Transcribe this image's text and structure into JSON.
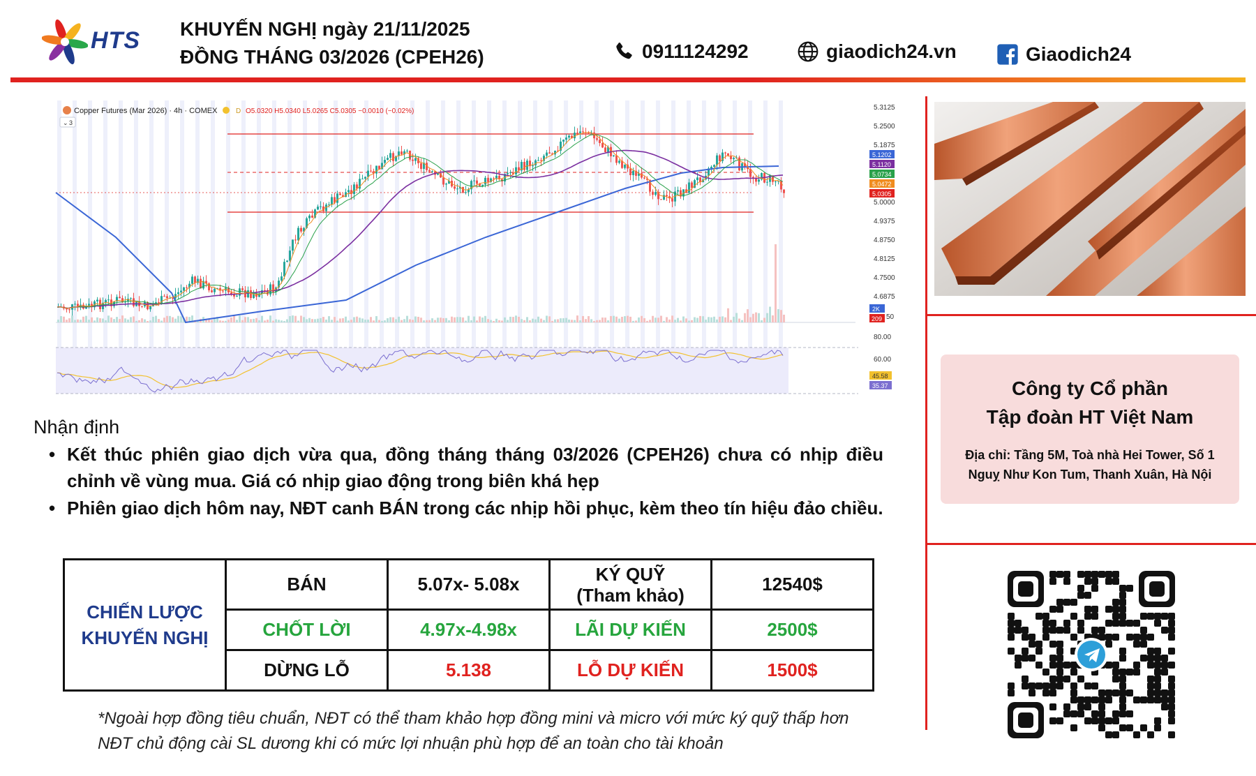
{
  "header": {
    "logo_text": "HTS",
    "title_line1": "KHUYẾN NGHỊ ngày 21/11/2025",
    "title_line2": "ĐỒNG THÁNG 03/2026 (CPEH26)",
    "phone": "0911124292",
    "website": "giaodich24.vn",
    "facebook": "Giaodich24",
    "icons": {
      "phone": "phone-icon",
      "web": "globe-icon",
      "facebook": "facebook-icon"
    },
    "accent_colors": {
      "rule_start": "#e0221f",
      "rule_end": "#f5b21f",
      "brand_blue": "#1f3b8c"
    }
  },
  "chart": {
    "header_text": "Copper Futures (Mar 2026) · 4h · COMEX",
    "ohlc_text": "O5.0320 H5.0340 L5.0265 C5.0305 −0.0010 (−0.02%)",
    "collapse_text": "3",
    "price_ticks": [
      "5.3125",
      "5.2500",
      "5.1875",
      "5.0000",
      "4.9375",
      "4.8750",
      "4.8125",
      "4.7500",
      "4.6875"
    ],
    "price_badges": [
      {
        "text": "5.1202",
        "color": "#3a66d6"
      },
      {
        "text": "5.1120",
        "color": "#7b2fa0"
      },
      {
        "text": "5.0734",
        "color": "#29a14a"
      },
      {
        "text": "5.0472",
        "color": "#f08c1f"
      },
      {
        "text": "5.0305",
        "color": "#e0221f"
      }
    ],
    "volume_badges": [
      {
        "text": "2K",
        "color": "#3a66d6"
      },
      {
        "text": "209",
        "color": "#e0221f"
      }
    ],
    "volume_tick": "50",
    "rsi_ticks": [
      "80.00",
      "60.00"
    ],
    "rsi_badges": [
      {
        "text": "45.58",
        "color": "#f2c12e"
      },
      {
        "text": "35.37",
        "color": "#7b6fd0"
      }
    ]
  },
  "right": {
    "company_line1": "Công ty Cổ phần",
    "company_line2": "Tập đoàn HT Việt Nam",
    "address_line1": "Địa chỉ: Tầng 5M, Toà nhà Hei Tower, Số 1",
    "address_line2": "Nguỵ Như Kon Tum, Thanh Xuân, Hà Nội"
  },
  "assessment": {
    "title": "Nhận định",
    "bullet1": "Kết thúc phiên giao dịch vừa qua, đồng tháng tháng 03/2026 (CPEH26) chưa có nhịp điều chỉnh về vùng mua. Giá có nhịp giao động trong biên khá hẹp",
    "bullet2": "Phiên giao dịch hôm nay, NĐT canh BÁN trong các nhịp hồi phục, kèm theo tín hiệu đảo chiều."
  },
  "strategy": {
    "label_line1": "CHIẾN LƯỢC",
    "label_line2": "KHUYẾN NGHỊ",
    "sell_label": "BÁN",
    "sell_value": "5.07x- 5.08x",
    "margin_label_line1": "KÝ QUỸ",
    "margin_label_line2": "(Tham khảo)",
    "margin_value": "12540$",
    "tp_label": "CHỐT LỜI",
    "tp_value": "4.97x-4.98x",
    "profit_label": "LÃI DỰ KIẾN",
    "profit_value": "2500$",
    "sl_label": "DỪNG LỖ",
    "sl_value": "5.138",
    "loss_label": "LỖ DỰ KIẾN",
    "loss_value": "1500$"
  },
  "note": {
    "line1": "*Ngoài hợp đồng tiêu chuẩn, NĐT có thể tham khảo hợp đồng mini và micro với mức ký quỹ thấp hơn",
    "line2": "NĐT chủ động cài SL dương khi có mức lợi nhuận phù hợp để an toàn cho tài khoản"
  }
}
